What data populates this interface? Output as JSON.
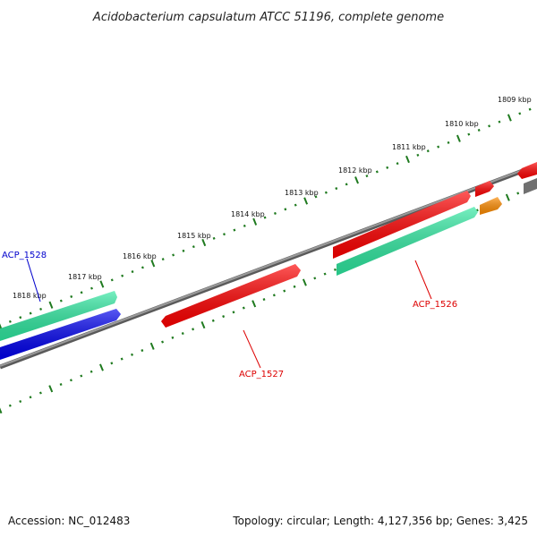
{
  "title": "Acidobacterium capsulatum ATCC 51196, complete genome",
  "footer": {
    "accession": "Accession: NC_012483",
    "summary": "Topology: circular; Length: 4,127,356 bp; Genes: 3,425"
  },
  "colors": {
    "backbone": "#808080",
    "tick": "#1f7a1f",
    "gene_red": "#ff0000",
    "gene_teal": "#2ee8a0",
    "gene_blue": "#0000ee",
    "gene_orange": "#ff8c00",
    "gene_gray": "#707070",
    "label_red": "#dd0000",
    "label_blue": "#0000cc"
  },
  "tick_labels": [
    "1809 kbp",
    "1810 kbp",
    "1811 kbp",
    "1812 kbp",
    "1813 kbp",
    "1814 kbp",
    "1815 kbp",
    "1816 kbp",
    "1817 kbp",
    "1818 kbp"
  ],
  "gene_labels": {
    "acp_1526": "ACP_1526",
    "acp_1527": "ACP_1527",
    "acp_1528": "ACP_1528"
  }
}
